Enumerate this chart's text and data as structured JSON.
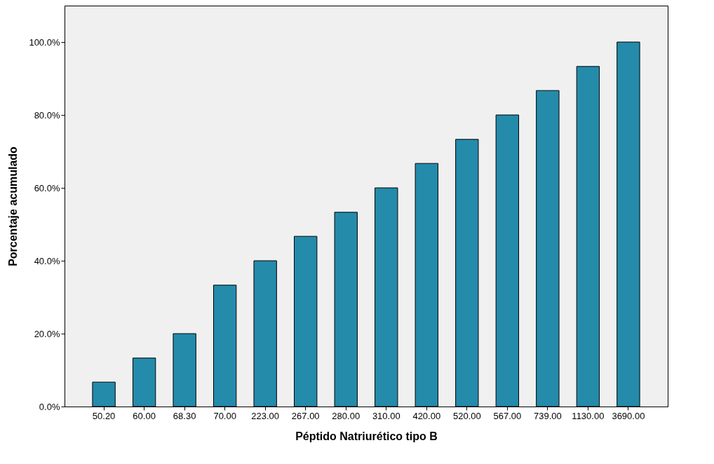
{
  "chart_data": {
    "type": "bar",
    "xlabel": "Péptido Natriurético tipo B",
    "ylabel": "Porcentaje acumulado",
    "categories": [
      "50.20",
      "60.00",
      "68.30",
      "70.00",
      "223.00",
      "267.00",
      "280.00",
      "310.00",
      "420.00",
      "520.00",
      "567.00",
      "739.00",
      "1130.00",
      "3690.00"
    ],
    "values": [
      6.7,
      13.3,
      20,
      33.3,
      40,
      46.7,
      53.3,
      60,
      66.7,
      73.3,
      80,
      86.7,
      93.3,
      100
    ],
    "color": "#248bab",
    "ylim": [
      0,
      110
    ],
    "yticks": [
      {
        "value": 0,
        "label": "0.0%"
      },
      {
        "value": 20,
        "label": "20.0%"
      },
      {
        "value": 40,
        "label": "40.0%"
      },
      {
        "value": 60,
        "label": "60.0%"
      },
      {
        "value": 80,
        "label": "80.0%"
      },
      {
        "value": 100,
        "label": "100.0%"
      }
    ],
    "grid": false
  }
}
